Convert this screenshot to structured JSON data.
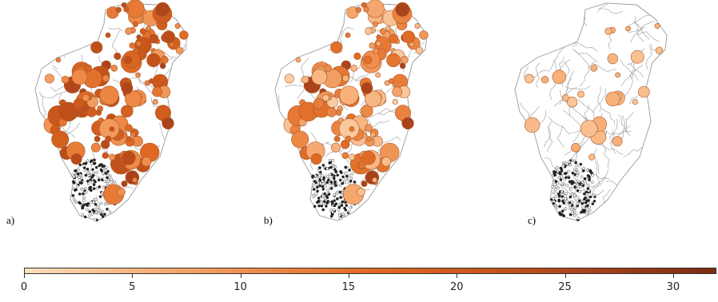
{
  "panels": [
    {
      "id": "a",
      "label": "a)"
    },
    {
      "id": "b",
      "label": "b)"
    },
    {
      "id": "c",
      "label": "c)"
    }
  ],
  "colorbar": {
    "min": 0,
    "max": 32,
    "ticks": [
      "0",
      "5",
      "10",
      "15",
      "20",
      "25",
      "30"
    ],
    "tick_values": [
      0,
      5,
      10,
      15,
      20,
      25,
      30
    ],
    "colors": [
      "#fde0c0",
      "#f8b27c",
      "#ef8c4a",
      "#e06a24",
      "#c8551a",
      "#a5401a",
      "#7a2b12"
    ]
  },
  "style": {
    "boundary_color": "#9a9a9a",
    "circle_edge": "#a85a2a",
    "hatch_color": "#222222"
  }
}
